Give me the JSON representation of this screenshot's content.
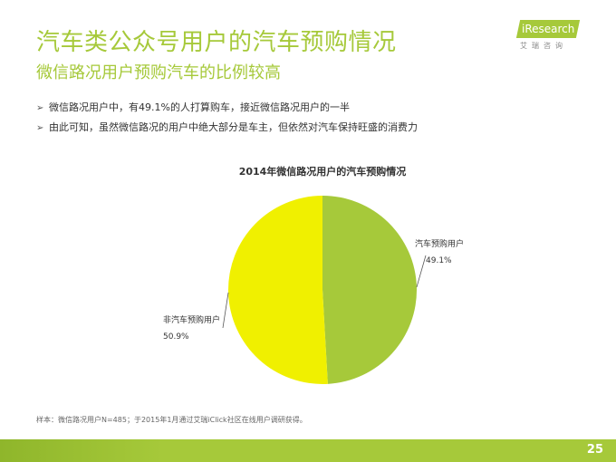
{
  "header": {
    "title": "汽车类公众号用户的汽车预购情况",
    "subtitle": "微信路况用户预购汽车的比例较高"
  },
  "logo": {
    "brand": "iResearch",
    "sub": "艾瑞咨询"
  },
  "bullets": [
    "微信路况用户中，有49.1%的人打算购车，接近微信路况用户的一半",
    "由此可知，虽然微信路况的用户中绝大部分是车主，但依然对汽车保持旺盛的消费力"
  ],
  "chart_data": {
    "type": "pie",
    "title": "2014年微信路况用户的汽车预购情况",
    "slices": [
      {
        "label": "汽车预购用户",
        "value": 49.1,
        "display": "49.1%",
        "color": "#a6c93a"
      },
      {
        "label": "非汽车预购用户",
        "value": 50.9,
        "display": "50.9%",
        "color": "#f0f000"
      }
    ],
    "legend": "none",
    "data_labels": "outside with leader lines"
  },
  "source": "样本：微信路况用户N=485；于2015年1月通过艾瑞iClick社区在线用户调研获得。",
  "footer": {
    "page": "25",
    "bar_color": "#a6c93a"
  }
}
